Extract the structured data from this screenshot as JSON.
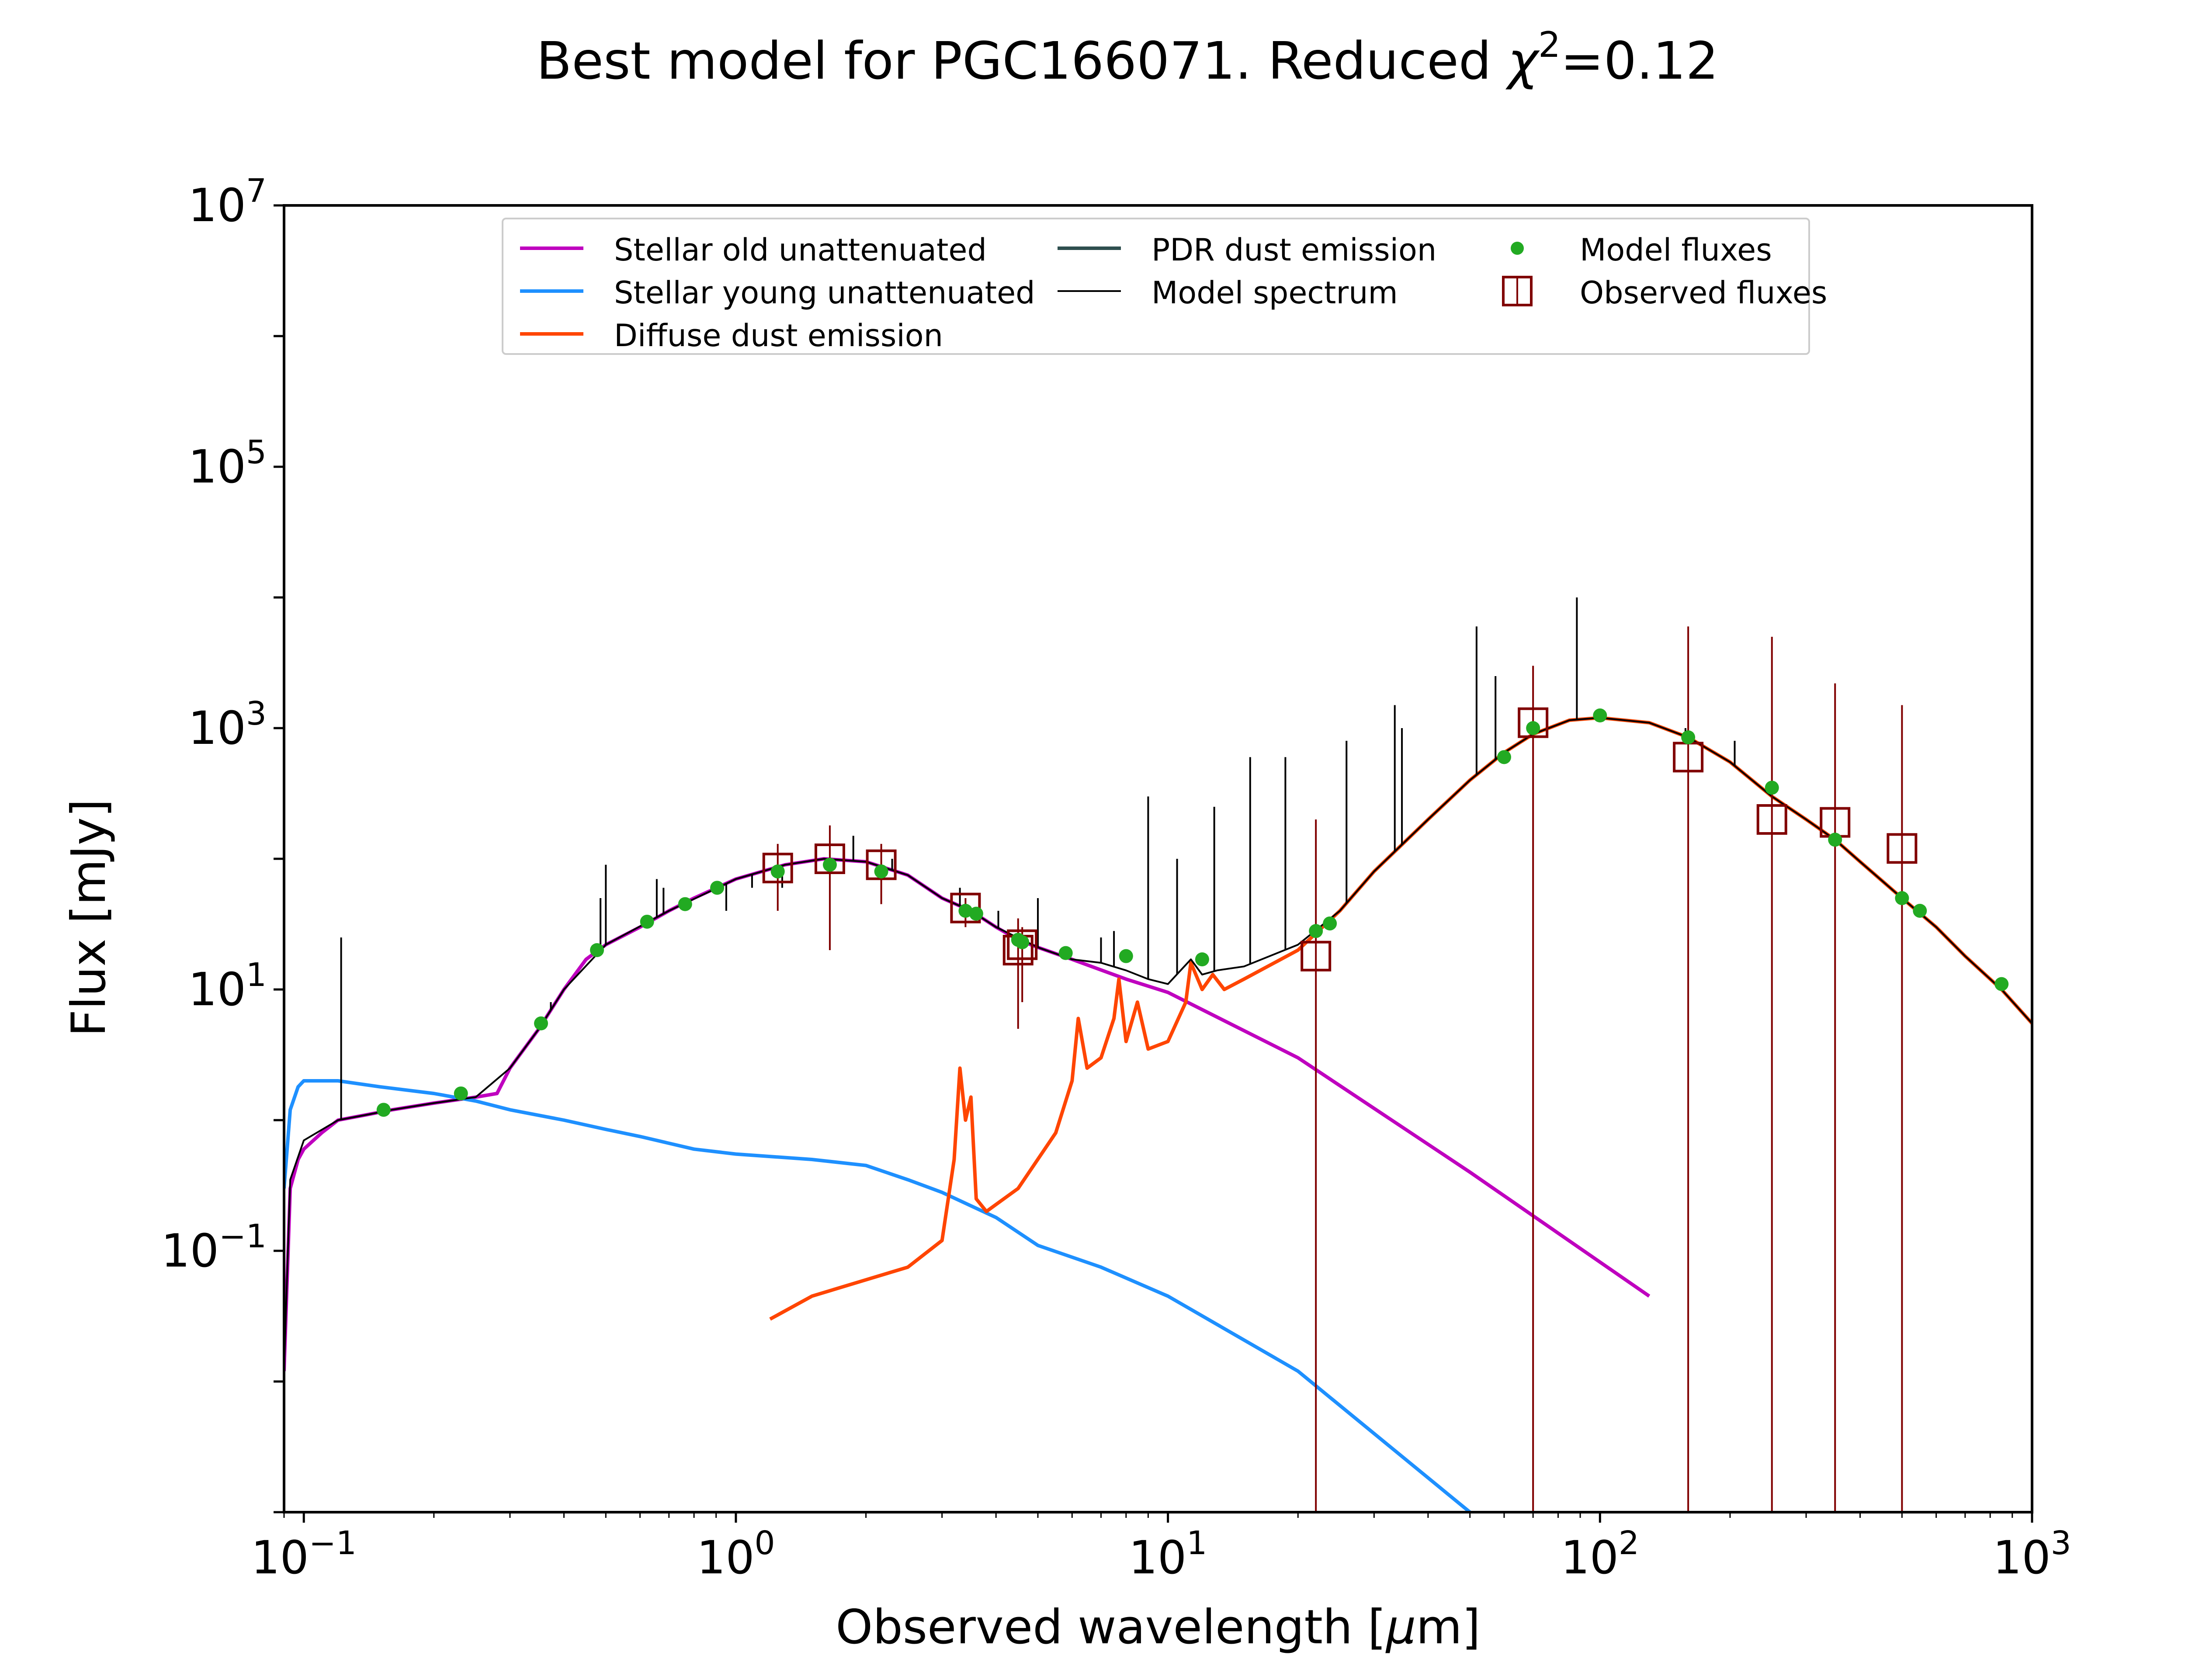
{
  "chart_data": {
    "type": "line",
    "title_prefix": "Best model for PGC166071. Reduced ",
    "title_chi": "χ",
    "title_exp": "2",
    "title_suffix": "=0.12",
    "xlabel_prefix": "Observed wavelength [",
    "xlabel_mu": "μ",
    "xlabel_suffix": "m]",
    "ylabel": "Flux [mJy]",
    "x_scale": "log",
    "y_scale": "log",
    "xlim": [
      0.09,
      1000
    ],
    "ylim": [
      0.001,
      10000000
    ],
    "x_ticks": [
      {
        "value": 0.1,
        "base": "10",
        "exp": "−1"
      },
      {
        "value": 1,
        "base": "10",
        "exp": "0"
      },
      {
        "value": 10,
        "base": "10",
        "exp": "1"
      },
      {
        "value": 100,
        "base": "10",
        "exp": "2"
      },
      {
        "value": 1000,
        "base": "10",
        "exp": "3"
      }
    ],
    "y_ticks": [
      {
        "value": 0.1,
        "base": "10",
        "exp": "−1"
      },
      {
        "value": 10,
        "base": "10",
        "exp": "1"
      },
      {
        "value": 1000,
        "base": "10",
        "exp": "3"
      },
      {
        "value": 100000,
        "base": "10",
        "exp": "5"
      },
      {
        "value": 10000000,
        "base": "10",
        "exp": "7"
      }
    ],
    "grid": false,
    "legend_position": "top-center",
    "legend": [
      {
        "label": "Stellar old unattenuated",
        "color": "#bf00bf",
        "marker": "line"
      },
      {
        "label": "Stellar young unattenuated",
        "color": "#1e90ff",
        "marker": "line"
      },
      {
        "label": "Diffuse dust emission",
        "color": "#ff4500",
        "marker": "line"
      },
      {
        "label": "PDR dust emission",
        "color": "#2f4f4f",
        "marker": "line"
      },
      {
        "label": "Model spectrum",
        "color": "#000000",
        "marker": "thinline"
      },
      {
        "label": "Model fluxes",
        "color": "#22aa22",
        "marker": "dot"
      },
      {
        "label": "Observed fluxes",
        "color": "#800000",
        "marker": "square"
      }
    ],
    "series": [
      {
        "name": "Stellar old unattenuated",
        "color": "#bf00bf",
        "points": [
          [
            0.09,
            0.012
          ],
          [
            0.093,
            0.3
          ],
          [
            0.097,
            0.5
          ],
          [
            0.1,
            0.6
          ],
          [
            0.11,
            0.8
          ],
          [
            0.12,
            1.0
          ],
          [
            0.14,
            1.1
          ],
          [
            0.16,
            1.2
          ],
          [
            0.2,
            1.35
          ],
          [
            0.25,
            1.5
          ],
          [
            0.28,
            1.6
          ],
          [
            0.3,
            2.5
          ],
          [
            0.35,
            5
          ],
          [
            0.4,
            10
          ],
          [
            0.45,
            17
          ],
          [
            0.5,
            22
          ],
          [
            0.6,
            30
          ],
          [
            0.7,
            40
          ],
          [
            0.8,
            50
          ],
          [
            1.0,
            70
          ],
          [
            1.3,
            90
          ],
          [
            1.6,
            100
          ],
          [
            2.0,
            95
          ],
          [
            2.5,
            75
          ],
          [
            3.0,
            50
          ],
          [
            3.5,
            40
          ],
          [
            4.0,
            30
          ],
          [
            4.5,
            24
          ],
          [
            5.0,
            21
          ],
          [
            6.0,
            17
          ],
          [
            8.0,
            12
          ],
          [
            10.0,
            9.5
          ],
          [
            20.0,
            3
          ],
          [
            50.0,
            0.4
          ],
          [
            130.0,
            0.045
          ]
        ]
      },
      {
        "name": "Stellar young unattenuated",
        "color": "#1e90ff",
        "points": [
          [
            0.09,
            0.3
          ],
          [
            0.093,
            1.2
          ],
          [
            0.097,
            1.8
          ],
          [
            0.1,
            2.0
          ],
          [
            0.12,
            2.0
          ],
          [
            0.15,
            1.8
          ],
          [
            0.2,
            1.6
          ],
          [
            0.25,
            1.4
          ],
          [
            0.3,
            1.2
          ],
          [
            0.4,
            1.0
          ],
          [
            0.5,
            0.85
          ],
          [
            0.6,
            0.75
          ],
          [
            0.8,
            0.6
          ],
          [
            1.0,
            0.55
          ],
          [
            1.5,
            0.5
          ],
          [
            2.0,
            0.45
          ],
          [
            2.5,
            0.35
          ],
          [
            3.0,
            0.28
          ],
          [
            4.0,
            0.18
          ],
          [
            5.0,
            0.11
          ],
          [
            7.0,
            0.075
          ],
          [
            10.0,
            0.045
          ],
          [
            20.0,
            0.012
          ],
          [
            50.0,
            0.001
          ]
        ]
      },
      {
        "name": "Diffuse dust emission",
        "color": "#ff4500",
        "points": [
          [
            1.2,
            0.03
          ],
          [
            1.5,
            0.045
          ],
          [
            2.0,
            0.06
          ],
          [
            2.5,
            0.075
          ],
          [
            3.0,
            0.12
          ],
          [
            3.2,
            0.5
          ],
          [
            3.3,
            2.5
          ],
          [
            3.4,
            1.0
          ],
          [
            3.5,
            1.5
          ],
          [
            3.6,
            0.25
          ],
          [
            3.8,
            0.2
          ],
          [
            4.5,
            0.3
          ],
          [
            5.5,
            0.8
          ],
          [
            6.0,
            2.0
          ],
          [
            6.2,
            6.0
          ],
          [
            6.5,
            2.5
          ],
          [
            7.0,
            3.0
          ],
          [
            7.5,
            6.0
          ],
          [
            7.7,
            12.0
          ],
          [
            8.0,
            4.0
          ],
          [
            8.5,
            8.0
          ],
          [
            9.0,
            3.5
          ],
          [
            10.0,
            4.0
          ],
          [
            11.0,
            8.0
          ],
          [
            11.3,
            16.0
          ],
          [
            12.0,
            10.0
          ],
          [
            12.7,
            13.0
          ],
          [
            13.5,
            10.0
          ],
          [
            15.0,
            12.0
          ],
          [
            20.0,
            20.0
          ],
          [
            25.0,
            40.0
          ],
          [
            30.0,
            80.0
          ],
          [
            40.0,
            200.0
          ],
          [
            50.0,
            400.0
          ],
          [
            60.0,
            650.0
          ],
          [
            70.0,
            900.0
          ],
          [
            85.0,
            1150.0
          ],
          [
            100.0,
            1200.0
          ],
          [
            130.0,
            1100.0
          ],
          [
            160.0,
            850.0
          ],
          [
            200.0,
            550.0
          ],
          [
            250.0,
            300.0
          ],
          [
            300.0,
            200.0
          ],
          [
            350.0,
            140.0
          ],
          [
            400.0,
            95.0
          ],
          [
            500.0,
            50.0
          ],
          [
            600.0,
            30.0
          ],
          [
            700.0,
            18.0
          ],
          [
            850.0,
            10.0
          ],
          [
            1000.0,
            5.5
          ]
        ]
      },
      {
        "name": "Model spectrum",
        "color": "#000000",
        "points": [
          [
            0.09,
            0.012
          ],
          [
            0.093,
            0.35
          ],
          [
            0.1,
            0.7
          ],
          [
            0.12,
            1.0
          ],
          [
            0.14,
            1.1
          ],
          [
            0.16,
            1.2
          ],
          [
            0.2,
            1.35
          ],
          [
            0.25,
            1.5
          ],
          [
            0.3,
            2.5
          ],
          [
            0.35,
            5.0
          ],
          [
            0.4,
            10.0
          ],
          [
            0.5,
            22.0
          ],
          [
            0.7,
            40.0
          ],
          [
            1.0,
            70.0
          ],
          [
            1.3,
            90.0
          ],
          [
            1.6,
            100.0
          ],
          [
            2.0,
            95.0
          ],
          [
            2.5,
            75.0
          ],
          [
            3.0,
            50.0
          ],
          [
            3.5,
            40.0
          ],
          [
            4.0,
            30.0
          ],
          [
            5.0,
            21.0
          ],
          [
            6.0,
            17.0
          ],
          [
            7.0,
            16.0
          ],
          [
            8.0,
            14.0
          ],
          [
            9.0,
            12.0
          ],
          [
            10.0,
            11.0
          ],
          [
            11.3,
            17.0
          ],
          [
            12.0,
            13.0
          ],
          [
            13.0,
            14.0
          ],
          [
            15.0,
            15.0
          ],
          [
            20.0,
            22.0
          ],
          [
            25.0,
            40.0
          ],
          [
            30.0,
            80.0
          ],
          [
            40.0,
            200.0
          ],
          [
            50.0,
            400.0
          ],
          [
            60.0,
            650.0
          ],
          [
            70.0,
            900.0
          ],
          [
            85.0,
            1150.0
          ],
          [
            100.0,
            1200.0
          ],
          [
            130.0,
            1100.0
          ],
          [
            160.0,
            850.0
          ],
          [
            200.0,
            550.0
          ],
          [
            250.0,
            300.0
          ],
          [
            300.0,
            200.0
          ],
          [
            350.0,
            140.0
          ],
          [
            400.0,
            95.0
          ],
          [
            500.0,
            50.0
          ],
          [
            600.0,
            30.0
          ],
          [
            700.0,
            18.0
          ],
          [
            850.0,
            10.0
          ],
          [
            1000.0,
            5.5
          ]
        ]
      }
    ],
    "emission_lines": [
      [
        0.122,
        25
      ],
      [
        0.373,
        8
      ],
      [
        0.486,
        50
      ],
      [
        0.5,
        90
      ],
      [
        0.656,
        70
      ],
      [
        0.68,
        60
      ],
      [
        0.95,
        40
      ],
      [
        1.09,
        60
      ],
      [
        1.28,
        60
      ],
      [
        1.87,
        150
      ],
      [
        2.3,
        100
      ],
      [
        3.3,
        60
      ],
      [
        4.05,
        40
      ],
      [
        5.0,
        50
      ],
      [
        7.0,
        25
      ],
      [
        7.5,
        28
      ],
      [
        9.0,
        300
      ],
      [
        10.5,
        100
      ],
      [
        12.8,
        250
      ],
      [
        15.5,
        600
      ],
      [
        18.7,
        600
      ],
      [
        25.9,
        800
      ],
      [
        33.5,
        1500
      ],
      [
        34.8,
        1000
      ],
      [
        51.8,
        6000
      ],
      [
        57.3,
        2500
      ],
      [
        88.4,
        10000
      ],
      [
        157.7,
        1000
      ],
      [
        205,
        800
      ]
    ],
    "model_fluxes": [
      [
        0.153,
        1.2
      ],
      [
        0.231,
        1.6
      ],
      [
        0.354,
        5.5
      ],
      [
        0.477,
        20
      ],
      [
        0.623,
        33
      ],
      [
        0.763,
        45
      ],
      [
        0.905,
        60
      ],
      [
        1.25,
        80
      ],
      [
        1.65,
        90
      ],
      [
        2.17,
        80
      ],
      [
        3.4,
        40
      ],
      [
        3.6,
        38
      ],
      [
        4.5,
        24
      ],
      [
        4.6,
        23
      ],
      [
        5.8,
        19
      ],
      [
        8.0,
        18
      ],
      [
        12.0,
        17
      ],
      [
        22.0,
        28
      ],
      [
        23.7,
        32
      ],
      [
        60,
        600
      ],
      [
        70,
        1000
      ],
      [
        100,
        1250
      ],
      [
        160,
        850
      ],
      [
        250,
        350
      ],
      [
        350,
        140
      ],
      [
        500,
        50
      ],
      [
        550,
        40
      ],
      [
        850,
        11
      ]
    ],
    "observed_fluxes": [
      {
        "x": 1.25,
        "y": 85,
        "lo": 40,
        "hi": 130
      },
      {
        "x": 1.65,
        "y": 100,
        "lo": 20,
        "hi": 180
      },
      {
        "x": 2.17,
        "y": 90,
        "lo": 45,
        "hi": 130
      },
      {
        "x": 3.4,
        "y": 42,
        "lo": 30,
        "hi": 50
      },
      {
        "x": 4.5,
        "y": 20,
        "lo": 5,
        "hi": 35
      },
      {
        "x": 4.6,
        "y": 22,
        "lo": 8,
        "hi": 30
      },
      {
        "x": 22.0,
        "y": 18,
        "lo": 0.001,
        "hi": 200
      },
      {
        "x": 70,
        "y": 1100,
        "lo": 0.001,
        "hi": 3000
      },
      {
        "x": 160,
        "y": 600,
        "lo": 0.001,
        "hi": 6000
      },
      {
        "x": 250,
        "y": 200,
        "lo": 0.001,
        "hi": 5000
      },
      {
        "x": 350,
        "y": 190,
        "lo": 0.001,
        "hi": 2200
      },
      {
        "x": 500,
        "y": 120,
        "lo": 0.001,
        "hi": 1500
      }
    ]
  }
}
